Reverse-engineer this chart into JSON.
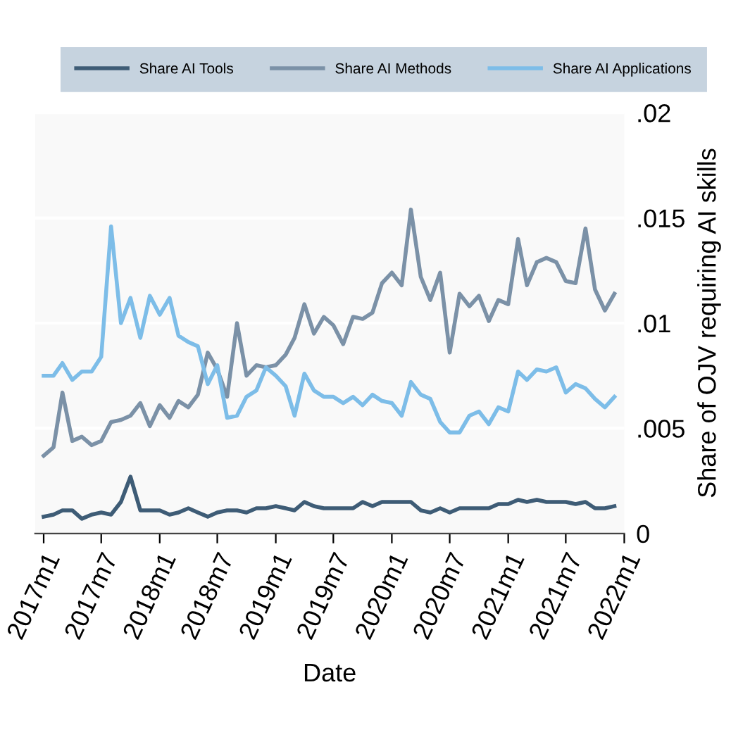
{
  "chart_data": {
    "type": "line",
    "xlabel": "Date",
    "ylabel": "Share of OJV requiring AI skills",
    "x": [
      "2017-01",
      "2017-02",
      "2017-03",
      "2017-04",
      "2017-05",
      "2017-06",
      "2017-07",
      "2017-08",
      "2017-09",
      "2017-10",
      "2017-11",
      "2017-12",
      "2018-01",
      "2018-02",
      "2018-03",
      "2018-04",
      "2018-05",
      "2018-06",
      "2018-07",
      "2018-08",
      "2018-09",
      "2018-10",
      "2018-11",
      "2018-12",
      "2019-01",
      "2019-02",
      "2019-03",
      "2019-04",
      "2019-05",
      "2019-06",
      "2019-07",
      "2019-08",
      "2019-09",
      "2019-10",
      "2019-11",
      "2019-12",
      "2020-01",
      "2020-02",
      "2020-03",
      "2020-04",
      "2020-05",
      "2020-06",
      "2020-07",
      "2020-08",
      "2020-09",
      "2020-10",
      "2020-11",
      "2020-12",
      "2021-01",
      "2021-02",
      "2021-03",
      "2021-04",
      "2021-05",
      "2021-06",
      "2021-07",
      "2021-08",
      "2021-09",
      "2021-10",
      "2021-11",
      "2021-12"
    ],
    "series": [
      {
        "name": "Share AI Tools",
        "color": "#3e5c76",
        "values": [
          0.0008,
          0.0009,
          0.0011,
          0.0011,
          0.0007,
          0.0009,
          0.001,
          0.0009,
          0.0015,
          0.0027,
          0.0011,
          0.0011,
          0.0011,
          0.0009,
          0.001,
          0.0012,
          0.001,
          0.0008,
          0.001,
          0.0011,
          0.0011,
          0.001,
          0.0012,
          0.0012,
          0.0013,
          0.0012,
          0.0011,
          0.0015,
          0.0013,
          0.0012,
          0.0012,
          0.0012,
          0.0012,
          0.0015,
          0.0013,
          0.0015,
          0.0015,
          0.0015,
          0.0015,
          0.0011,
          0.001,
          0.0012,
          0.001,
          0.0012,
          0.0012,
          0.0012,
          0.0012,
          0.0014,
          0.0014,
          0.0016,
          0.0015,
          0.0016,
          0.0015,
          0.0015,
          0.0015,
          0.0014,
          0.0015,
          0.0012,
          0.0012,
          0.0013
        ]
      },
      {
        "name": "Share AI Methods",
        "color": "#7b91a7",
        "values": [
          0.0037,
          0.0041,
          0.0067,
          0.0044,
          0.0046,
          0.0042,
          0.0044,
          0.0053,
          0.0054,
          0.0056,
          0.0062,
          0.0051,
          0.0061,
          0.0055,
          0.0063,
          0.006,
          0.0066,
          0.0086,
          0.0078,
          0.0065,
          0.01,
          0.0075,
          0.008,
          0.0079,
          0.008,
          0.0085,
          0.0093,
          0.0109,
          0.0095,
          0.0103,
          0.0099,
          0.009,
          0.0103,
          0.0102,
          0.0105,
          0.0119,
          0.0124,
          0.0118,
          0.0154,
          0.0122,
          0.0111,
          0.0124,
          0.0086,
          0.0114,
          0.0108,
          0.0113,
          0.0101,
          0.0111,
          0.0109,
          0.014,
          0.0118,
          0.0129,
          0.0131,
          0.0129,
          0.012,
          0.0119,
          0.0145,
          0.0116,
          0.0106,
          0.0114
        ]
      },
      {
        "name": "Share AI Applications",
        "color": "#7dbde8",
        "values": [
          0.0075,
          0.0075,
          0.0081,
          0.0073,
          0.0077,
          0.0077,
          0.0084,
          0.0146,
          0.01,
          0.0112,
          0.0093,
          0.0113,
          0.0104,
          0.0112,
          0.0094,
          0.0091,
          0.0089,
          0.0071,
          0.008,
          0.0055,
          0.0056,
          0.0065,
          0.0068,
          0.0079,
          0.0075,
          0.007,
          0.0056,
          0.0076,
          0.0068,
          0.0065,
          0.0065,
          0.0062,
          0.0065,
          0.0061,
          0.0066,
          0.0063,
          0.0062,
          0.0056,
          0.0072,
          0.0066,
          0.0064,
          0.0053,
          0.0048,
          0.0048,
          0.0056,
          0.0058,
          0.0052,
          0.006,
          0.0058,
          0.0077,
          0.0073,
          0.0078,
          0.0077,
          0.0079,
          0.0067,
          0.0071,
          0.0069,
          0.0064,
          0.006,
          0.0065
        ]
      }
    ],
    "xlim": [
      "2016-12-05",
      "2022-01-01"
    ],
    "xticks": [
      {
        "value": "2017-01",
        "label": "2017m1"
      },
      {
        "value": "2017-07",
        "label": "2017m7"
      },
      {
        "value": "2018-01",
        "label": "2018m1"
      },
      {
        "value": "2018-07",
        "label": "2018m7"
      },
      {
        "value": "2019-01",
        "label": "2019m1"
      },
      {
        "value": "2019-07",
        "label": "2019m7"
      },
      {
        "value": "2020-01",
        "label": "2020m1"
      },
      {
        "value": "2020-07",
        "label": "2020m7"
      },
      {
        "value": "2021-01",
        "label": "2021m1"
      },
      {
        "value": "2021-07",
        "label": "2021m7"
      },
      {
        "value": "2022-01",
        "label": "2022m1"
      }
    ],
    "ylim": [
      0,
      0.02
    ],
    "yticks": [
      {
        "value": 0,
        "label": "0"
      },
      {
        "value": 0.005,
        "label": ".005"
      },
      {
        "value": 0.01,
        "label": ".01"
      },
      {
        "value": 0.015,
        "label": ".015"
      },
      {
        "value": 0.02,
        "label": ".02"
      }
    ],
    "grid": "y",
    "legend": "top",
    "line_style": "solid",
    "marker": "none"
  }
}
